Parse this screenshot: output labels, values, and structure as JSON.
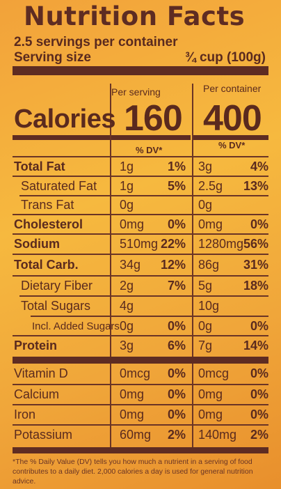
{
  "label": {
    "title": "Nutrition Facts",
    "servings": "2.5 servings per container",
    "serving_size_label": "Serving size",
    "serving_size_value": "¾ cup (100g)",
    "per_serving_label": "Per serving",
    "per_container_label": "Per container",
    "calories_label": "Calories",
    "calories_per_serving": "160",
    "calories_per_container": "400",
    "dv_header": "% DV*",
    "rows": [
      {
        "name": "Total Fat",
        "bold": true,
        "serving": "1g",
        "serving_dv": "1%",
        "container": "3g",
        "container_dv": "4%"
      },
      {
        "name": "Saturated Fat",
        "bold": false,
        "serving": "1g",
        "serving_dv": "5%",
        "container": "2.5g",
        "container_dv": "13%"
      },
      {
        "name": "Trans Fat",
        "bold": false,
        "serving": "0g",
        "serving_dv": "",
        "container": "0g",
        "container_dv": ""
      },
      {
        "name": "Cholesterol",
        "bold": true,
        "serving": "0mg",
        "serving_dv": "0%",
        "container": "0mg",
        "container_dv": "0%"
      },
      {
        "name": "Sodium",
        "bold": true,
        "serving": "510mg",
        "serving_dv": "22%",
        "container": "1280mg",
        "container_dv": "56%"
      },
      {
        "name": "Total Carb.",
        "bold": true,
        "serving": "34g",
        "serving_dv": "12%",
        "container": "86g",
        "container_dv": "31%"
      },
      {
        "name": "Dietary Fiber",
        "bold": false,
        "serving": "2g",
        "serving_dv": "7%",
        "container": "5g",
        "container_dv": "18%"
      },
      {
        "name": "Total Sugars",
        "bold": false,
        "serving": "4g",
        "serving_dv": "",
        "container": "10g",
        "container_dv": ""
      },
      {
        "name": "Incl. Added Sugars",
        "bold": false,
        "serving": "0g",
        "serving_dv": "0%",
        "container": "0g",
        "container_dv": "0%"
      },
      {
        "name": "Protein",
        "bold": true,
        "serving": "3g",
        "serving_dv": "6%",
        "container": "7g",
        "container_dv": "14%"
      }
    ],
    "vitamins": [
      {
        "name": "Vitamin D",
        "serving": "0mcg",
        "serving_dv": "0%",
        "container": "0mcg",
        "container_dv": "0%"
      },
      {
        "name": "Calcium",
        "serving": "0mg",
        "serving_dv": "0%",
        "container": "0mg",
        "container_dv": "0%"
      },
      {
        "name": "Iron",
        "serving": "0mg",
        "serving_dv": "0%",
        "container": "0mg",
        "container_dv": "0%"
      },
      {
        "name": "Potassium",
        "serving": "60mg",
        "serving_dv": "2%",
        "container": "140mg",
        "container_dv": "2%"
      }
    ],
    "footnote": "*The % Daily Value (DV) tells you how much a nutrient in a serving of food contributes to a daily diet. 2,000 calories a day is used for general nutrition advice."
  }
}
